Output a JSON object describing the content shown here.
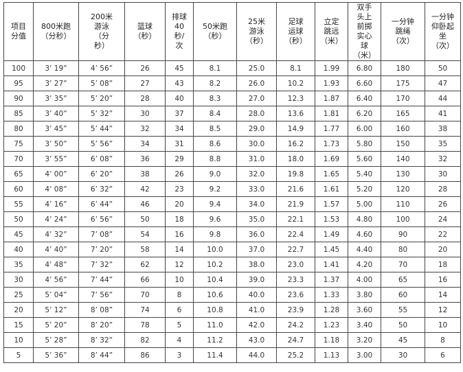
{
  "headers": [
    [
      "项目",
      "分值"
    ],
    [
      "800米跑",
      "（分秒）"
    ],
    [
      "200米",
      "游泳",
      "（分",
      "秒）"
    ],
    [
      "篮球",
      "（秒）"
    ],
    [
      "排球",
      "40",
      "秒/",
      "次"
    ],
    [
      "50米跑",
      "（秒）"
    ],
    [
      "25米",
      "游泳",
      "（秒）"
    ],
    [
      "足球",
      "运球",
      "（秒）"
    ],
    [
      "立定",
      "跳远",
      "（米）"
    ],
    [
      "双手",
      "头上",
      "前掷",
      "实心",
      "球",
      "（米）"
    ],
    [
      "一分钟",
      "跳绳",
      "（次）"
    ],
    [
      "一分钟",
      "仰卧起",
      "坐",
      "（次）"
    ]
  ],
  "rows": [
    [
      "100",
      "3’ 19”",
      "4’ 56”",
      "26",
      "45",
      "8.1",
      "25.0",
      "8.1",
      "1.99",
      "6.80",
      "180",
      "50"
    ],
    [
      "95",
      "3’ 27”",
      "5’ 08”",
      "27",
      "43",
      "8.2",
      "26.0",
      "10.2",
      "1.93",
      "6.60",
      "175",
      "47"
    ],
    [
      "90",
      "3’ 35”",
      "5’ 20”",
      "28",
      "40",
      "8.3",
      "27.0",
      "12.3",
      "1.87",
      "6.40",
      "170",
      "44"
    ],
    [
      "85",
      "3’ 40”",
      "5’ 32”",
      "30",
      "37",
      "8.4",
      "28.0",
      "13.6",
      "1.81",
      "6.20",
      "165",
      "41"
    ],
    [
      "80",
      "3’ 45”",
      "5’ 44”",
      "32",
      "34",
      "8.5",
      "29.0",
      "14.9",
      "1.77",
      "6.00",
      "160",
      "38"
    ],
    [
      "75",
      "3’ 50”",
      "5’ 56”",
      "34",
      "31",
      "8.6",
      "30.0",
      "16.2",
      "1.73",
      "5.80",
      "150",
      "35"
    ],
    [
      "70",
      "3’ 55”",
      "6’ 08”",
      "36",
      "29",
      "8.8",
      "31.0",
      "18.0",
      "1.69",
      "5.60",
      "140",
      "32"
    ],
    [
      "65",
      "4’ 00”",
      "6’ 20”",
      "38",
      "26",
      "9.0",
      "32.0",
      "19.8",
      "1.65",
      "5.40",
      "130",
      "30"
    ],
    [
      "60",
      "4’ 08”",
      "6’ 32”",
      "42",
      "23",
      "9.2",
      "33.0",
      "21.6",
      "1.61",
      "5.20",
      "120",
      "28"
    ],
    [
      "55",
      "4’ 16”",
      "6’ 44”",
      "46",
      "20",
      "9.4",
      "34.0",
      "21.9",
      "1.57",
      "5.00",
      "110",
      "26"
    ],
    [
      "50",
      "4’ 24”",
      "6’ 56”",
      "50",
      "18",
      "9.6",
      "35.0",
      "22.1",
      "1.53",
      "4.80",
      "100",
      "24"
    ],
    [
      "45",
      "4’ 32”",
      "7’ 08”",
      "54",
      "16",
      "9.8",
      "36.0",
      "22.4",
      "1.49",
      "4.60",
      "90",
      "22"
    ],
    [
      "40",
      "4’ 40”",
      "7’ 20”",
      "58",
      "14",
      "10.0",
      "37.0",
      "22.7",
      "1.45",
      "4.40",
      "80",
      "20"
    ],
    [
      "35",
      "4’ 48”",
      "7’ 32”",
      "62",
      "12",
      "10.2",
      "38.0",
      "23.0",
      "1.41",
      "4.20",
      "70",
      "18"
    ],
    [
      "30",
      "4’ 56”",
      "7’ 44”",
      "66",
      "10",
      "10.4",
      "39.0",
      "23.3",
      "1.37",
      "4.00",
      "65",
      "16"
    ],
    [
      "25",
      "5’ 04”",
      "7’ 56”",
      "70",
      "8",
      "10.6",
      "40.0",
      "23.6",
      "1.33",
      "3.80",
      "60",
      "14"
    ],
    [
      "20",
      "5’ 12”",
      "8’ 08”",
      "74",
      "6",
      "10.8",
      "41.0",
      "23.9",
      "1.28",
      "3.60",
      "55",
      "12"
    ],
    [
      "15",
      "5’ 20”",
      "8’ 20”",
      "78",
      "5",
      "11.0",
      "42.0",
      "24.2",
      "1.23",
      "3.40",
      "50",
      "10"
    ],
    [
      "10",
      "5’ 28”",
      "8’ 32”",
      "82",
      "4",
      "11.2",
      "43.0",
      "24.7",
      "1.18",
      "3.20",
      "45",
      "8"
    ],
    [
      "5",
      "5’ 36”",
      "8’ 44”",
      "86",
      "3",
      "11.4",
      "44.0",
      "25.2",
      "1.13",
      "3.00",
      "30",
      "6"
    ]
  ]
}
